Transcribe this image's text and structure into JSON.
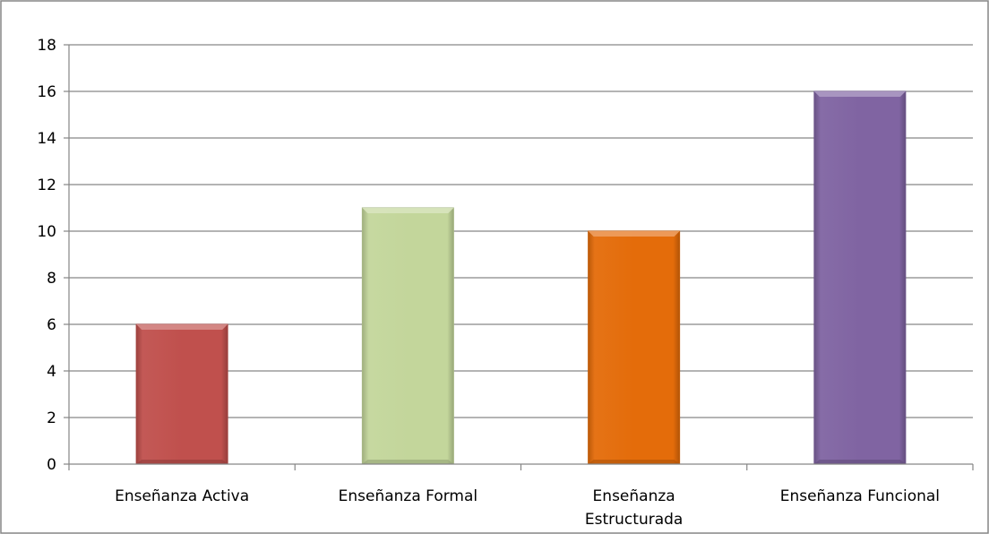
{
  "chart_data": {
    "type": "bar",
    "title": "",
    "xlabel": "",
    "ylabel": "",
    "categories": [
      "Enseñanza Activa",
      "Enseñanza Formal",
      "Enseñanza Estructurada",
      "Enseñanza Funcional"
    ],
    "category_label_lines": [
      [
        "Enseñanza Activa"
      ],
      [
        "Enseñanza Formal"
      ],
      [
        "Enseñanza",
        "Estructurada"
      ],
      [
        "Enseñanza Funcional"
      ]
    ],
    "values": [
      6,
      11,
      10,
      16
    ],
    "colors": [
      "#c0504d",
      "#c3d69b",
      "#e46c0a",
      "#8064a2"
    ],
    "ylim": [
      0,
      18
    ],
    "yticks": [
      0,
      2,
      4,
      6,
      8,
      10,
      12,
      14,
      16,
      18
    ],
    "grid": true,
    "legend": "none"
  }
}
